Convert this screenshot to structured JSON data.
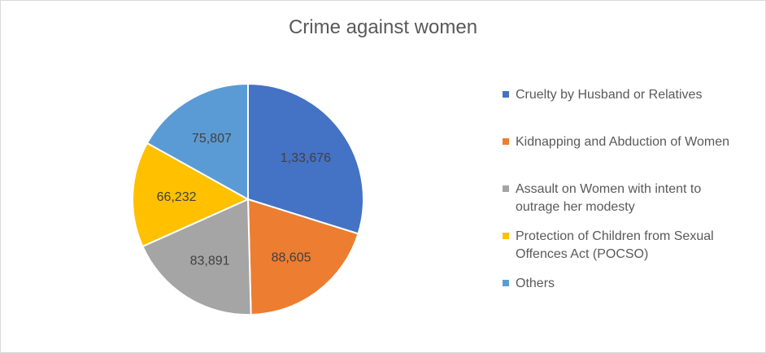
{
  "chart_data": {
    "type": "pie",
    "title": "Crime against women",
    "categories": [
      "Cruelty by Husband or Relatives",
      "Kidnapping and Abduction of Women",
      "Assault on Women with intent to outrage her modesty",
      "Protection of Children from Sexual Offences Act (POCSO)",
      "Others"
    ],
    "values": [
      133676,
      88605,
      83891,
      66232,
      75807
    ],
    "data_labels": [
      "1,33,676",
      "88,605",
      "83,891",
      "66,232",
      "75,807"
    ],
    "colors": [
      "#4472C4",
      "#ED7D31",
      "#A5A5A5",
      "#FFC000",
      "#5B9BD5"
    ],
    "legend_lines": [
      [
        "Cruelty by Husband or Relatives"
      ],
      [
        "Kidnapping and Abduction of Women"
      ],
      [
        "Assault on Women with intent to",
        "outrage her modesty"
      ],
      [
        "Protection of Children from Sexual",
        "Offences Act (POCSO)"
      ],
      [
        "Others"
      ]
    ],
    "legend_position": "right",
    "start_angle": "12 o'clock",
    "direction": "clockwise"
  }
}
